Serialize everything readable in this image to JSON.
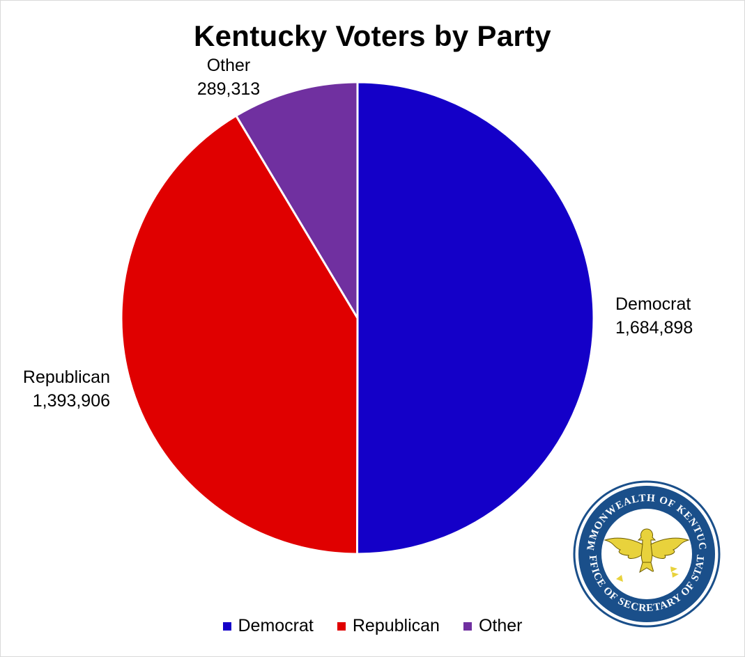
{
  "chart_data": {
    "type": "pie",
    "title": "Kentucky Voters by Party",
    "categories": [
      "Democrat",
      "Republican",
      "Other"
    ],
    "values": [
      1684898,
      1393906,
      289313
    ],
    "value_labels": [
      "1,684,898",
      "1,393,906",
      "289,313"
    ],
    "colors": [
      "#1400c8",
      "#e00000",
      "#7030a0"
    ],
    "legend_position": "bottom",
    "start_angle": "12 o'clock",
    "direction": "clockwise"
  },
  "seal": {
    "text_top": "COMMONWEALTH OF KENTUCKY",
    "text_bottom": "OFFICE OF SECRETARY OF STATE",
    "ring_color": "#1a4f8a",
    "emblem_color": "#e8d23c"
  }
}
